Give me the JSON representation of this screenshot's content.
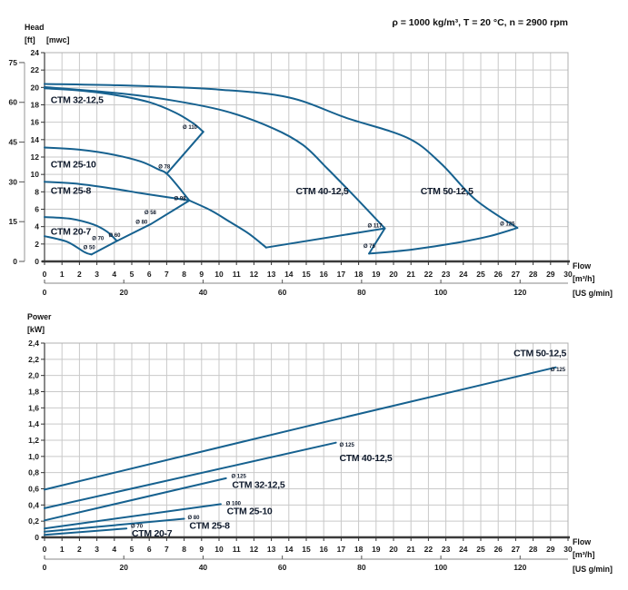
{
  "header": {
    "conditions": "ρ = 1000 kg/m³, T = 20 °C, n = 2900 rpm"
  },
  "colors": {
    "curve": "#16618f",
    "label_dark": "#101b2d",
    "axis_text": "#1a1a1a",
    "grid": "#c9c9c9",
    "border": "#b0b0b0",
    "axis": "#3a3a3a"
  },
  "chart_data": [
    {
      "id": "head_flow",
      "type": "line",
      "title": "Head vs Flow",
      "y_axis": {
        "title": "Head",
        "unit_primary": "[ft]",
        "unit_secondary": "[mwc]",
        "range": [
          0,
          24
        ],
        "ticks": [
          {
            "v": 0,
            "t": "0"
          },
          {
            "v": 2,
            "t": "2"
          },
          {
            "v": 4,
            "t": "4"
          },
          {
            "v": 6,
            "t": "6"
          },
          {
            "v": 8,
            "t": "8"
          },
          {
            "v": 10,
            "t": "10"
          },
          {
            "v": 12,
            "t": "12"
          },
          {
            "v": 14,
            "t": "14"
          },
          {
            "v": 16,
            "t": "16"
          },
          {
            "v": 18,
            "t": "18"
          },
          {
            "v": 20,
            "t": "20"
          },
          {
            "v": 22,
            "t": "22"
          },
          {
            "v": 24,
            "t": "24"
          }
        ],
        "secondary_ticks": [
          {
            "v": 0,
            "t": "0"
          },
          {
            "v": 15,
            "t": "15"
          },
          {
            "v": 30,
            "t": "30"
          },
          {
            "v": 45,
            "t": "45"
          },
          {
            "v": 60,
            "t": "60"
          },
          {
            "v": 75,
            "t": "75"
          }
        ],
        "secondary_to_primary": 0.3048
      },
      "x_axis": {
        "title": "Flow",
        "unit_primary": "[m³/h]",
        "unit_secondary": "[US g/min]",
        "range": [
          0,
          30
        ],
        "ticks": [
          "0",
          "1",
          "2",
          "3",
          "4",
          "5",
          "6",
          "7",
          "8",
          "9",
          "10",
          "11",
          "12",
          "13",
          "14",
          "15",
          "16",
          "17",
          "18",
          "19",
          "20",
          "21",
          "22",
          "23",
          "24",
          "25",
          "26",
          "27",
          "28",
          "29",
          "30"
        ],
        "secondary_ticks": [
          {
            "v": 0,
            "t": "0"
          },
          {
            "v": 20,
            "t": "20"
          },
          {
            "v": 40,
            "t": "40"
          },
          {
            "v": 60,
            "t": "60"
          },
          {
            "v": 80,
            "t": "80"
          },
          {
            "v": 100,
            "t": "100"
          },
          {
            "v": 120,
            "t": "120"
          }
        ],
        "secondary_to_primary": 0.22712
      },
      "series": [
        {
          "name": "ctm-50-12-5-head-max",
          "smooth": true,
          "points": [
            [
              0,
              20.4
            ],
            [
              5,
              20.2
            ],
            [
              10,
              19.75
            ],
            [
              14,
              18.85
            ],
            [
              17.3,
              16.5
            ],
            [
              20.8,
              14.2
            ],
            [
              22.7,
              11.3
            ],
            [
              24.7,
              7.1
            ],
            [
              27.1,
              3.85
            ]
          ]
        },
        {
          "name": "ctm-40-12-5-head-max",
          "smooth": true,
          "points": [
            [
              0,
              20.05
            ],
            [
              4.4,
              19.3
            ],
            [
              7.5,
              18.45
            ],
            [
              10.5,
              17.2
            ],
            [
              13.1,
              15.3
            ],
            [
              14.8,
              13.4
            ],
            [
              16.2,
              10.7
            ],
            [
              17.8,
              7.4
            ],
            [
              19.5,
              3.8
            ]
          ]
        },
        {
          "name": "ctm-32-12-5-head-max",
          "smooth": true,
          "points": [
            [
              0,
              19.9
            ],
            [
              2,
              19.65
            ],
            [
              4,
              19.15
            ],
            [
              6,
              18.3
            ],
            [
              7.5,
              17.1
            ],
            [
              8.5,
              15.9
            ],
            [
              9.1,
              14.9
            ]
          ]
        },
        {
          "name": "ctm-32-12-5-right-boundary",
          "smooth": false,
          "points": [
            [
              9.1,
              14.9
            ],
            [
              7.05,
              10.2
            ]
          ]
        },
        {
          "name": "ctm-25-10-head-max",
          "smooth": true,
          "points": [
            [
              0,
              13.1
            ],
            [
              2,
              12.85
            ],
            [
              4,
              12.25
            ],
            [
              5.5,
              11.5
            ],
            [
              6.5,
              10.6
            ],
            [
              7.1,
              9.9
            ],
            [
              8.3,
              7.0
            ]
          ]
        },
        {
          "name": "ctm-25-8-head-max",
          "smooth": true,
          "points": [
            [
              0,
              9.15
            ],
            [
              2,
              8.9
            ],
            [
              4,
              8.35
            ],
            [
              5.5,
              7.85
            ],
            [
              7,
              7.4
            ],
            [
              8.3,
              7.0
            ]
          ]
        },
        {
          "name": "lower-diagonal-boundary",
          "smooth": false,
          "points": [
            [
              8.3,
              7.0
            ],
            [
              6.1,
              4.3
            ],
            [
              4.15,
              2.35
            ],
            [
              2.7,
              0.8
            ]
          ]
        },
        {
          "name": "ctm-20-7-head-max",
          "smooth": true,
          "points": [
            [
              0,
              5.1
            ],
            [
              1.5,
              4.9
            ],
            [
              2.8,
              4.25
            ],
            [
              3.6,
              3.4
            ],
            [
              4.15,
              2.35
            ]
          ]
        },
        {
          "name": "ctm-20-7-head-min",
          "smooth": true,
          "points": [
            [
              0,
              2.9
            ],
            [
              1.3,
              2.25
            ],
            [
              2.3,
              1.05
            ],
            [
              2.7,
              0.8
            ]
          ]
        },
        {
          "name": "ctm-40-12-5-lower-boundary",
          "smooth": true,
          "points": [
            [
              8.3,
              7.0
            ],
            [
              9.5,
              5.9
            ],
            [
              10.5,
              4.7
            ],
            [
              11.7,
              3.2
            ],
            [
              12.7,
              1.6
            ]
          ]
        },
        {
          "name": "ctm-40-12-5-end-line",
          "smooth": false,
          "points": [
            [
              12.7,
              1.6
            ],
            [
              19.5,
              3.8
            ]
          ]
        },
        {
          "name": "ctm-50-12-5-drop-line",
          "smooth": false,
          "points": [
            [
              19.5,
              3.8
            ],
            [
              18.6,
              0.9
            ]
          ]
        },
        {
          "name": "ctm-50-12-5-lower-boundary",
          "smooth": true,
          "points": [
            [
              18.6,
              0.9
            ],
            [
              21,
              1.35
            ],
            [
              23.5,
              2.1
            ],
            [
              25.5,
              2.9
            ],
            [
              27.1,
              3.85
            ]
          ]
        }
      ],
      "diameter_labels": [
        {
          "t": "Ø 110",
          "x": 8.75,
          "y": 15.25,
          "a": "end"
        },
        {
          "t": "Ø 78",
          "x": 7.2,
          "y": 10.7,
          "a": "end"
        },
        {
          "t": "Ø 98",
          "x": 8.1,
          "y": 7.05,
          "a": "end"
        },
        {
          "t": "Ø 58",
          "x": 6.4,
          "y": 5.45,
          "a": "end"
        },
        {
          "t": "Ø 80",
          "x": 5.9,
          "y": 4.35,
          "a": "end"
        },
        {
          "t": "Ø 60",
          "x": 4.35,
          "y": 2.8,
          "a": "end"
        },
        {
          "t": "Ø 70",
          "x": 3.4,
          "y": 2.45,
          "a": "end"
        },
        {
          "t": "Ø 50",
          "x": 2.9,
          "y": 1.4,
          "a": "end"
        },
        {
          "t": "Ø 117",
          "x": 19.35,
          "y": 3.9,
          "a": "end"
        },
        {
          "t": "Ø 75",
          "x": 18.95,
          "y": 1.55,
          "a": "end"
        },
        {
          "t": "Ø 125",
          "x": 26.95,
          "y": 4.1,
          "a": "end"
        }
      ],
      "pump_labels": [
        {
          "t": "CTM 32-12,5",
          "x": 0.35,
          "y": 18.2,
          "a": "start"
        },
        {
          "t": "CTM 25-10",
          "x": 0.35,
          "y": 10.8,
          "a": "start"
        },
        {
          "t": "CTM 25-8",
          "x": 0.35,
          "y": 7.8,
          "a": "start"
        },
        {
          "t": "CTM 20-7",
          "x": 0.35,
          "y": 3.1,
          "a": "start"
        },
        {
          "t": "CTM 40-12,5",
          "x": 14.4,
          "y": 7.7,
          "a": "start"
        },
        {
          "t": "CTM 50-12,5",
          "x": 21.55,
          "y": 7.7,
          "a": "start"
        }
      ]
    },
    {
      "id": "power_flow",
      "type": "line",
      "title": "Power vs Flow",
      "y_axis": {
        "title": "Power",
        "unit_primary": "[kW]",
        "range": [
          0,
          2.4
        ],
        "ticks": [
          {
            "v": 0,
            "t": "0"
          },
          {
            "v": 0.2,
            "t": "0,2"
          },
          {
            "v": 0.4,
            "t": "0,4"
          },
          {
            "v": 0.6,
            "t": "0,6"
          },
          {
            "v": 0.8,
            "t": "0,8"
          },
          {
            "v": 1.0,
            "t": "1,0"
          },
          {
            "v": 1.2,
            "t": "1,2"
          },
          {
            "v": 1.4,
            "t": "1,4"
          },
          {
            "v": 1.6,
            "t": "1,6"
          },
          {
            "v": 1.8,
            "t": "1,8"
          },
          {
            "v": 2.0,
            "t": "2,0"
          },
          {
            "v": 2.2,
            "t": "2,2"
          },
          {
            "v": 2.4,
            "t": "2,4"
          }
        ]
      },
      "x_axis": {
        "title": "Flow",
        "unit_primary": "[m³/h]",
        "unit_secondary": "[US g/min]",
        "range": [
          0,
          30
        ],
        "ticks": [
          "0",
          "1",
          "2",
          "3",
          "4",
          "5",
          "6",
          "7",
          "8",
          "9",
          "10",
          "11",
          "12",
          "13",
          "14",
          "15",
          "16",
          "17",
          "18",
          "19",
          "20",
          "21",
          "22",
          "23",
          "24",
          "25",
          "26",
          "27",
          "28",
          "29",
          "30"
        ],
        "secondary_ticks": [
          {
            "v": 0,
            "t": "0"
          },
          {
            "v": 20,
            "t": "20"
          },
          {
            "v": 40,
            "t": "40"
          },
          {
            "v": 60,
            "t": "60"
          },
          {
            "v": 80,
            "t": "80"
          },
          {
            "v": 100,
            "t": "100"
          },
          {
            "v": 120,
            "t": "120"
          }
        ],
        "secondary_to_primary": 0.22712
      },
      "series": [
        {
          "name": "ctm-50-12-5-power",
          "smooth": true,
          "points": [
            [
              0,
              0.59
            ],
            [
              15,
              1.37
            ],
            [
              29.3,
              2.1
            ]
          ]
        },
        {
          "name": "ctm-40-12-5-power",
          "smooth": false,
          "points": [
            [
              0,
              0.36
            ],
            [
              16.7,
              1.17
            ]
          ]
        },
        {
          "name": "ctm-32-12-5-power",
          "smooth": false,
          "points": [
            [
              0,
              0.21
            ],
            [
              10.4,
              0.73
            ]
          ]
        },
        {
          "name": "ctm-25-10-power",
          "smooth": false,
          "points": [
            [
              0,
              0.11
            ],
            [
              10.1,
              0.41
            ]
          ]
        },
        {
          "name": "ctm-25-8-power",
          "smooth": false,
          "points": [
            [
              0,
              0.07
            ],
            [
              8.0,
              0.23
            ]
          ]
        },
        {
          "name": "ctm-20-7-power",
          "smooth": false,
          "points": [
            [
              0,
              0.03
            ],
            [
              4.7,
              0.11
            ]
          ]
        }
      ],
      "diameter_labels": [
        {
          "t": "Ø 125",
          "x": 29.85,
          "y": 2.05,
          "a": "end"
        },
        {
          "t": "Ø 125",
          "x": 16.9,
          "y": 1.12,
          "a": "start"
        },
        {
          "t": "Ø 125",
          "x": 10.7,
          "y": 0.735,
          "a": "start"
        },
        {
          "t": "Ø 100",
          "x": 10.4,
          "y": 0.4,
          "a": "start"
        },
        {
          "t": "Ø 80",
          "x": 8.2,
          "y": 0.225,
          "a": "start"
        },
        {
          "t": "Ø 70",
          "x": 4.95,
          "y": 0.115,
          "a": "start"
        }
      ],
      "pump_labels": [
        {
          "t": "CTM 50-12,5",
          "x": 29.9,
          "y": 2.24,
          "a": "end"
        },
        {
          "t": "CTM 40-12,5",
          "x": 16.9,
          "y": 0.94,
          "a": "start"
        },
        {
          "t": "CTM 32-12,5",
          "x": 10.75,
          "y": 0.61,
          "a": "start"
        },
        {
          "t": "CTM 25-10",
          "x": 10.45,
          "y": 0.285,
          "a": "start"
        },
        {
          "t": "CTM 25-8",
          "x": 8.3,
          "y": 0.105,
          "a": "start"
        },
        {
          "t": "CTM 20-7",
          "x": 5.0,
          "y": 0.01,
          "a": "start"
        }
      ]
    }
  ]
}
